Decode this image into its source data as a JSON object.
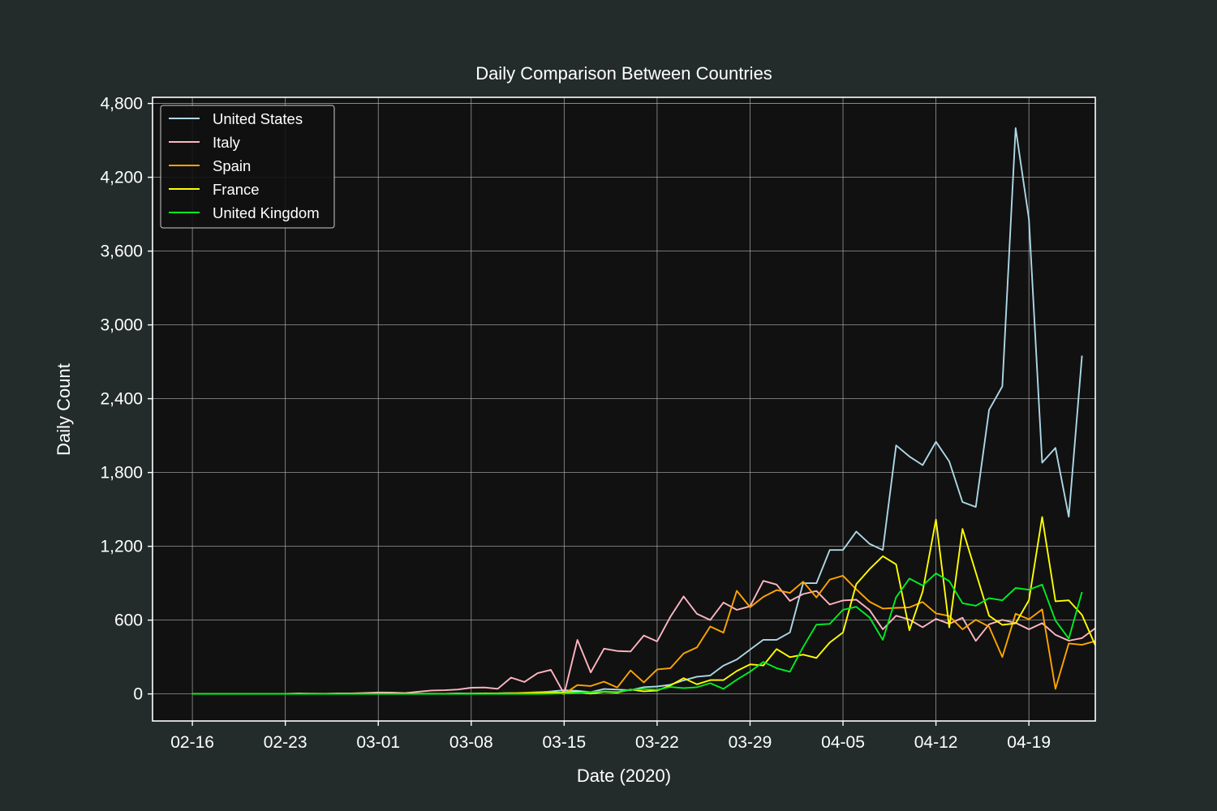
{
  "colors": {
    "page_background": "#232b2b",
    "plot_background": "#111111",
    "grid": "#b0b0b0",
    "text": "#ffffff"
  },
  "chart_data": {
    "type": "line",
    "title": "Daily Comparison Between Countries",
    "xlabel": "Date (2020)",
    "ylabel": "Daily Count",
    "x_start": "2020-02-16",
    "x_end": "2020-04-21",
    "x_ticks": [
      "02-16",
      "02-23",
      "03-01",
      "03-08",
      "03-15",
      "03-22",
      "03-29",
      "04-05",
      "04-12",
      "04-19"
    ],
    "x_range": [
      "2020-02-13",
      "2020-04-24"
    ],
    "ylim": [
      -220,
      4850
    ],
    "y_ticks": [
      0,
      600,
      1200,
      1800,
      2400,
      3000,
      3600,
      4200,
      4800
    ],
    "y_tick_labels": [
      "0",
      "600",
      "1,200",
      "1,800",
      "2,400",
      "3,000",
      "3,600",
      "4,200",
      "4,800"
    ],
    "grid": true,
    "legend_position": "top-left",
    "series": [
      {
        "name": "United States",
        "color": "#add8e6",
        "values": [
          0,
          0,
          0,
          0,
          0,
          0,
          0,
          0,
          0,
          0,
          0,
          0,
          0,
          1,
          2,
          1,
          2,
          2,
          2,
          1,
          4,
          3,
          3,
          4,
          8,
          7,
          10,
          20,
          30,
          25,
          15,
          40,
          35,
          30,
          55,
          60,
          75,
          110,
          140,
          150,
          230,
          280,
          360,
          440,
          440,
          500,
          900,
          900,
          1170,
          1170,
          1320,
          1220,
          1170,
          2020,
          1930,
          1860,
          2050,
          1890,
          1560,
          1520,
          2310,
          2500,
          4600,
          3860,
          1880,
          2000,
          1440,
          2750
        ]
      },
      {
        "name": "Italy",
        "color": "#ffb6c1",
        "values": [
          0,
          0,
          0,
          0,
          0,
          0,
          0,
          1,
          4,
          3,
          2,
          5,
          4,
          8,
          12,
          11,
          7,
          18,
          28,
          30,
          36,
          50,
          52,
          42,
          133,
          97,
          168,
          196,
          0,
          439,
          175,
          368,
          349,
          345,
          475,
          427,
          627,
          793,
          651,
          601,
          743,
          683,
          712,
          919,
          889,
          756,
          812,
          837,
          727,
          760,
          766,
          681,
          525,
          636,
          604,
          542,
          610,
          570,
          619,
          431,
          566,
          602,
          578,
          525,
          575,
          480,
          433,
          454,
          534
        ]
      },
      {
        "name": "Spain",
        "color": "#ffa500",
        "values": [
          0,
          0,
          0,
          0,
          0,
          0,
          0,
          0,
          0,
          0,
          0,
          0,
          0,
          0,
          0,
          0,
          0,
          0,
          0,
          1,
          2,
          0,
          3,
          5,
          7,
          10,
          15,
          18,
          0,
          72,
          64,
          100,
          52,
          191,
          94,
          199,
          209,
          329,
          378,
          548,
          498,
          838,
          705,
          789,
          844,
          821,
          913,
          784,
          929,
          961,
          850,
          749,
          694,
          700,
          704,
          747,
          655,
          634,
          525,
          603,
          547,
          300,
          652,
          607,
          687,
          41,
          410,
          399,
          430
        ]
      },
      {
        "name": "France",
        "color": "#ffff00",
        "values": [
          0,
          0,
          0,
          0,
          0,
          0,
          0,
          0,
          0,
          1,
          1,
          1,
          1,
          2,
          0,
          1,
          2,
          2,
          0,
          1,
          0,
          3,
          4,
          4,
          3,
          5,
          9,
          11,
          12,
          18,
          2,
          18,
          10,
          36,
          21,
          27,
          69,
          128,
          78,
          112,
          112,
          186,
          240,
          231,
          365,
          299,
          319,
          292,
          418,
          499,
          893,
          1015,
          1120,
          1053,
          518,
          833,
          1417,
          541,
          1341,
          987,
          635,
          561,
          574,
          762,
          1438,
          753,
          761,
          642,
          395
        ]
      },
      {
        "name": "United Kingdom",
        "color": "#00ee22",
        "values": [
          0,
          0,
          0,
          0,
          0,
          0,
          0,
          0,
          0,
          0,
          0,
          0,
          0,
          0,
          0,
          0,
          0,
          0,
          0,
          0,
          0,
          1,
          0,
          1,
          1,
          1,
          1,
          2,
          5,
          10,
          14,
          20,
          16,
          33,
          40,
          33,
          56,
          48,
          54,
          87,
          41,
          115,
          181,
          260,
          209,
          180,
          381,
          563,
          569,
          684,
          708,
          621,
          439,
          786,
          938,
          881,
          980,
          917,
          737,
          717,
          778,
          761,
          861,
          847,
          888,
          596,
          449,
          828
        ]
      }
    ]
  }
}
